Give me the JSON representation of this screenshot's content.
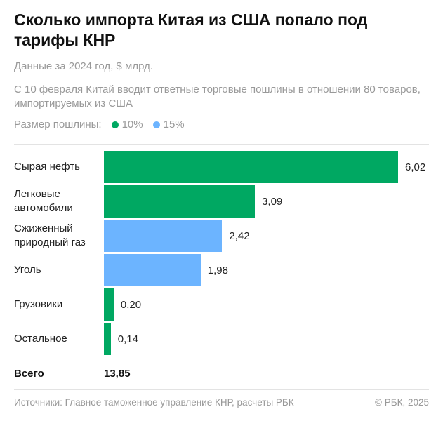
{
  "chart_data": {
    "type": "bar",
    "title": "Сколько импорта Китая из США попало под тарифы КНР",
    "subtitle": "Данные за 2024 год, $ млрд.",
    "description": "С 10 февраля Китай вводит ответные торговые пошлины в отношении 80 товаров, импортируемых из США",
    "legend": {
      "title": "Размер пошлины:",
      "items": [
        {
          "name": "10%",
          "color": "#00a862"
        },
        {
          "name": "15%",
          "color": "#6cb4ff"
        }
      ]
    },
    "categories": [
      "Сырая нефть",
      "Легковые автомобили",
      "Сжиженный природный газ",
      "Уголь",
      "Грузовики",
      "Остальное"
    ],
    "values": [
      6.02,
      3.09,
      2.42,
      1.98,
      0.2,
      0.14
    ],
    "value_labels": [
      "6,02",
      "3,09",
      "2,42",
      "1,98",
      "0,20",
      "0,14"
    ],
    "colors": [
      "#00a862",
      "#00a862",
      "#6cb4ff",
      "#6cb4ff",
      "#00a862",
      "#00a862"
    ],
    "total": {
      "label": "Всего",
      "value": 13.85,
      "value_label": "13,85"
    },
    "source": "Источники: Главное таможенное управление КНР, расчеты РБК",
    "copyright": "© РБК, 2025"
  }
}
